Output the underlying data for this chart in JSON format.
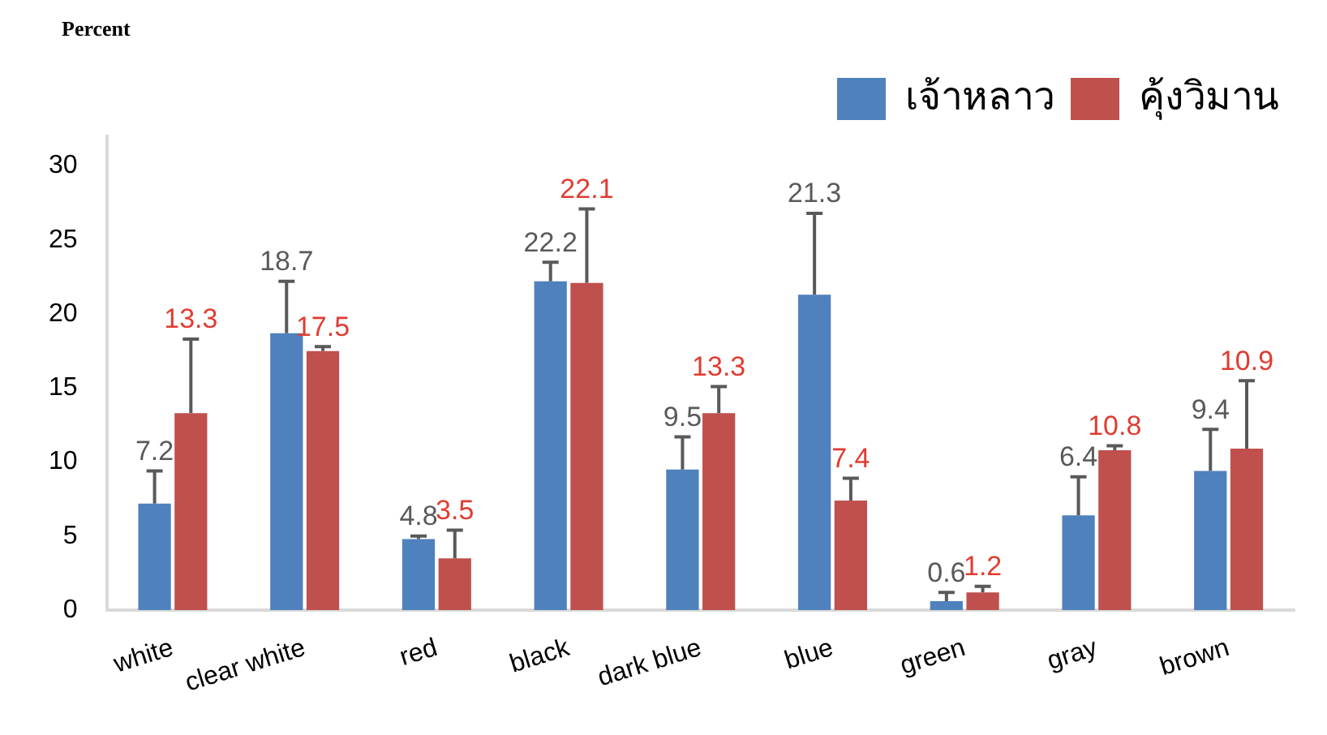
{
  "chart_data": {
    "type": "bar",
    "ylabel": "Percent",
    "categories": [
      "white",
      "clear white",
      "red",
      "black",
      "dark blue",
      "blue",
      "green",
      "gray",
      "brown"
    ],
    "series": [
      {
        "name": "เจ้าหลาว",
        "color": "#4f81bd",
        "values": [
          7.2,
          18.7,
          4.8,
          22.2,
          9.5,
          21.3,
          0.6,
          6.4,
          9.4
        ],
        "errors": [
          [
            7.2,
            9.4
          ],
          [
            18.7,
            22.2
          ],
          [
            4.8,
            5.0
          ],
          [
            22.2,
            23.5
          ],
          [
            9.5,
            11.7
          ],
          [
            21.3,
            26.8
          ],
          [
            0.6,
            1.2
          ],
          [
            6.4,
            9.0
          ],
          [
            9.4,
            12.2
          ]
        ]
      },
      {
        "name": "คุ้งวิมาน",
        "color": "#c0504d",
        "values": [
          13.3,
          17.5,
          3.5,
          22.1,
          13.3,
          7.4,
          1.2,
          10.8,
          10.9
        ],
        "errors": [
          [
            13.3,
            18.3
          ],
          [
            17.5,
            17.8
          ],
          [
            3.5,
            5.4
          ],
          [
            22.1,
            27.1
          ],
          [
            13.3,
            15.1
          ],
          [
            7.4,
            8.9
          ],
          [
            1.2,
            1.6
          ],
          [
            10.8,
            11.1
          ],
          [
            10.9,
            15.5
          ]
        ]
      }
    ],
    "ylim": [
      0,
      32
    ],
    "yticks": [
      0,
      5,
      10,
      15,
      20,
      25,
      30
    ],
    "grid": false,
    "legend": "top right",
    "data_labels": true
  }
}
